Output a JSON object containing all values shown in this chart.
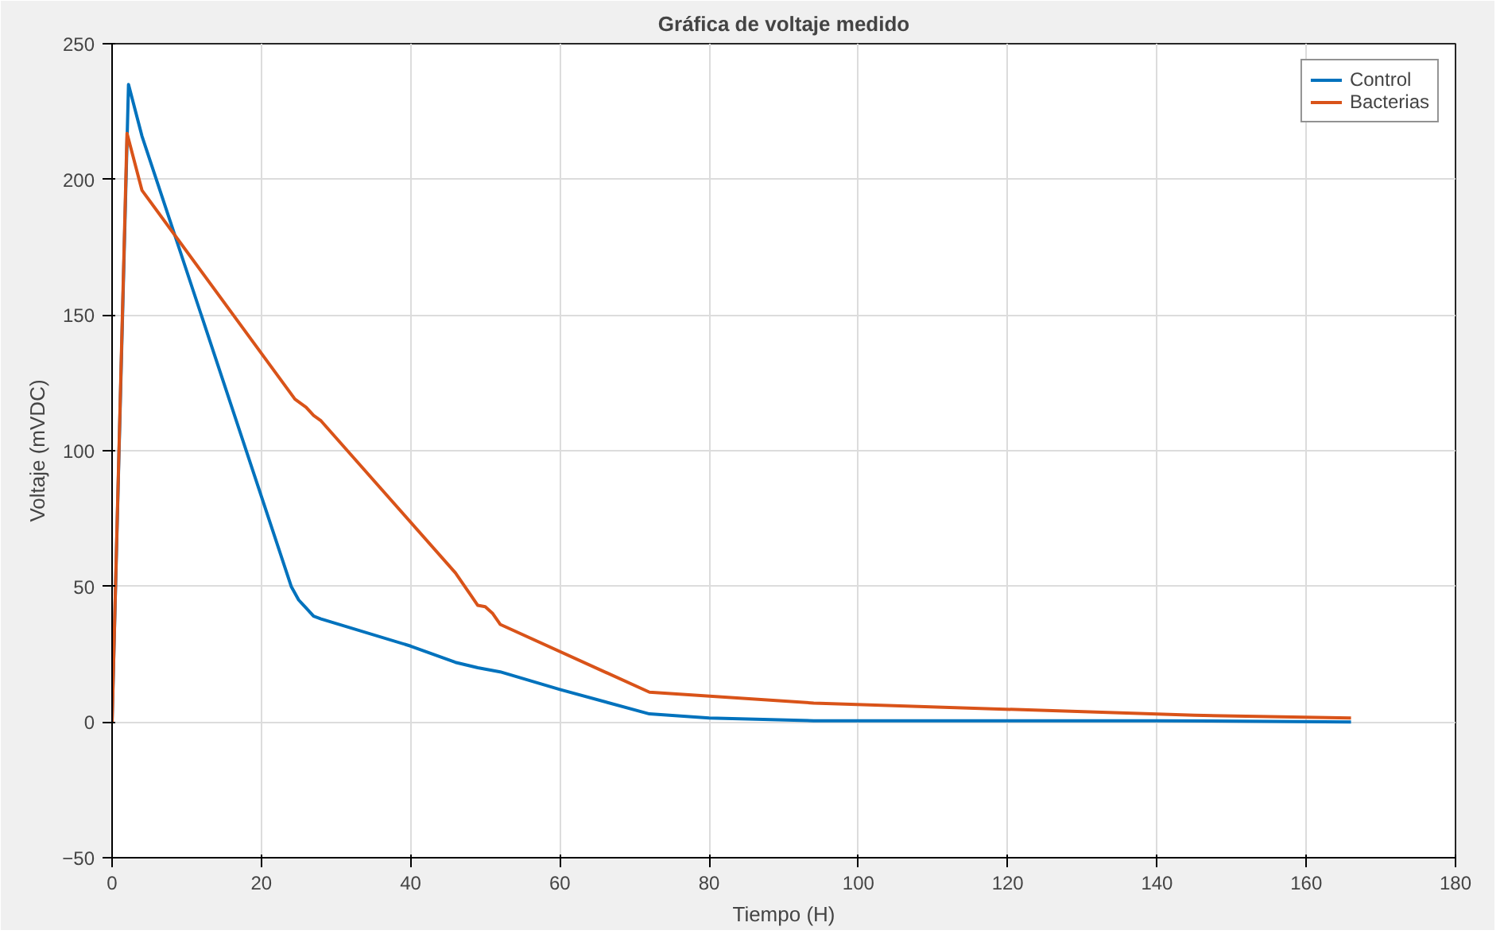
{
  "chart_data": {
    "type": "line",
    "title": "Gráfica de voltaje medido",
    "xlabel": "Tiempo (H)",
    "ylabel": "Voltaje (mVDC)",
    "xlim": [
      0,
      180
    ],
    "ylim": [
      -50,
      250
    ],
    "xticks": [
      0,
      20,
      40,
      60,
      80,
      100,
      120,
      140,
      160,
      180
    ],
    "yticks": [
      -50,
      0,
      50,
      100,
      150,
      200,
      250
    ],
    "grid": true,
    "legend": "top right",
    "series": [
      {
        "name": "Control",
        "color": "#0072bd",
        "x": [
          0,
          2.2,
          4,
          24,
          25,
          26,
          27,
          28,
          40,
          46,
          49,
          52,
          60,
          72,
          80,
          94,
          140,
          166
        ],
        "values": [
          0,
          235,
          216,
          50,
          45,
          42,
          39,
          38,
          28,
          22,
          20,
          18.5,
          12,
          3,
          1.5,
          0.5,
          0.5,
          0
        ]
      },
      {
        "name": "Bacterias",
        "color": "#d95319",
        "x": [
          0,
          2,
          4,
          24.5,
          26,
          27,
          28,
          46,
          48,
          49,
          50,
          51,
          52,
          72,
          94,
          145,
          166
        ],
        "values": [
          0,
          217,
          196,
          119,
          116,
          113,
          111,
          55,
          47,
          43,
          42.5,
          40,
          36,
          11,
          7,
          2.5,
          1.5
        ]
      }
    ]
  }
}
